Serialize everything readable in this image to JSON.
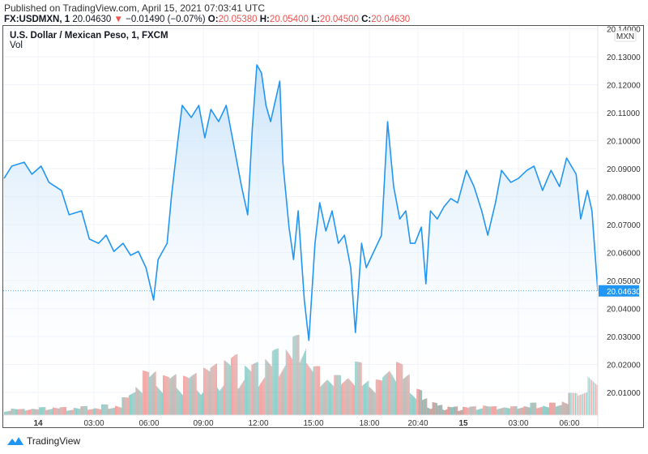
{
  "published": "Published on TradingView.com, April 15, 2021 07:03:41 UTC",
  "header": {
    "symbol": "FX:USDMXN, 1",
    "last": "20.04630",
    "change_arrow": "▼",
    "change": "−0.01490 (−0.07%)",
    "o_label": "O:",
    "o": "20.05380",
    "h_label": "H:",
    "h": "20.05400",
    "l_label": "L:",
    "l": "20.04500",
    "c_label": "C:",
    "c": "20.04630"
  },
  "legend": {
    "title": "U.S. Dollar / Mexican Peso, 1, FXCM",
    "vol": "Vol"
  },
  "footer": {
    "brand": "TradingView"
  },
  "colors": {
    "line": "#2196f3",
    "area": "#d6ebfc",
    "vol_up": "#26a69a",
    "vol_down": "#ef5350",
    "red": "#ef5350"
  },
  "chart_data": {
    "type": "area",
    "currency": "MXN",
    "last_price_label": "20.04630",
    "ylim": [
      20.0,
      20.14
    ],
    "y_ticks": [
      "20.14000",
      "20.13000",
      "20.12000",
      "20.11000",
      "20.10000",
      "20.09000",
      "20.08000",
      "20.07000",
      "20.06000",
      "20.05000",
      "20.04000",
      "20.03000",
      "20.02000",
      "20.01000"
    ],
    "x_ticks": [
      {
        "label": "14",
        "bold": true,
        "t": "04-14 00:00"
      },
      {
        "label": "03:00",
        "t": "04-14 03:00"
      },
      {
        "label": "06:00",
        "t": "04-14 06:00"
      },
      {
        "label": "09:00",
        "t": "04-14 09:00"
      },
      {
        "label": "12:00",
        "t": "04-14 12:00"
      },
      {
        "label": "15:00",
        "t": "04-14 15:00"
      },
      {
        "label": "18:00",
        "t": "04-14 18:00"
      },
      {
        "label": "20:40",
        "t": "04-14 20:40"
      },
      {
        "label": "15",
        "bold": true,
        "t": "04-15 00:00"
      },
      {
        "label": "03:00",
        "t": "04-15 03:00"
      },
      {
        "label": "06:00",
        "t": "04-15 06:00"
      }
    ],
    "series": [
      [
        "04-13 22:10",
        20.0865
      ],
      [
        "04-13 22:35",
        20.0909
      ],
      [
        "04-13 23:15",
        20.0923
      ],
      [
        "04-13 23:40",
        20.088
      ],
      [
        "04-14 00:10",
        20.0909
      ],
      [
        "04-14 00:35",
        20.0851
      ],
      [
        "04-14 01:15",
        20.0822
      ],
      [
        "04-14 01:40",
        20.0735
      ],
      [
        "04-14 02:20",
        20.0749
      ],
      [
        "04-14 02:45",
        20.0648
      ],
      [
        "04-14 03:15",
        20.0633
      ],
      [
        "04-14 03:40",
        20.0662
      ],
      [
        "04-14 04:05",
        20.0604
      ],
      [
        "04-14 04:35",
        20.0633
      ],
      [
        "04-14 05:00",
        20.059
      ],
      [
        "04-14 05:25",
        20.0604
      ],
      [
        "04-14 05:50",
        20.0546
      ],
      [
        "04-14 06:15",
        20.043
      ],
      [
        "04-14 06:30",
        20.0575
      ],
      [
        "04-14 07:00",
        20.0633
      ],
      [
        "04-14 07:15",
        20.0807
      ],
      [
        "04-14 07:35",
        20.0996
      ],
      [
        "04-14 07:50",
        20.1126
      ],
      [
        "04-14 08:20",
        20.1083
      ],
      [
        "04-14 08:45",
        20.1126
      ],
      [
        "04-14 09:05",
        20.101
      ],
      [
        "04-14 09:25",
        20.1112
      ],
      [
        "04-14 09:50",
        20.1068
      ],
      [
        "04-14 10:15",
        20.1126
      ],
      [
        "04-14 10:45",
        20.0952
      ],
      [
        "04-14 11:05",
        20.0836
      ],
      [
        "04-14 11:25",
        20.0735
      ],
      [
        "04-14 11:40",
        20.1039
      ],
      [
        "04-14 11:55",
        20.1271
      ],
      [
        "04-14 12:10",
        20.1242
      ],
      [
        "04-14 12:25",
        20.1126
      ],
      [
        "04-14 12:40",
        20.1068
      ],
      [
        "04-14 13:10",
        20.1213
      ],
      [
        "04-14 13:20",
        20.0923
      ],
      [
        "04-14 13:40",
        20.0691
      ],
      [
        "04-14 13:55",
        20.0575
      ],
      [
        "04-14 14:10",
        20.0749
      ],
      [
        "04-14 14:30",
        20.043
      ],
      [
        "04-14 14:45",
        20.0286
      ],
      [
        "04-14 15:05",
        20.0633
      ],
      [
        "04-14 15:20",
        20.0778
      ],
      [
        "04-14 15:40",
        20.0677
      ],
      [
        "04-14 16:00",
        20.0749
      ],
      [
        "04-14 16:20",
        20.0633
      ],
      [
        "04-14 16:40",
        20.0662
      ],
      [
        "04-14 17:00",
        20.0546
      ],
      [
        "04-14 17:15",
        20.0314
      ],
      [
        "04-14 17:35",
        20.0633
      ],
      [
        "04-14 17:50",
        20.0546
      ],
      [
        "04-14 18:15",
        20.0604
      ],
      [
        "04-14 18:40",
        20.0662
      ],
      [
        "04-14 19:00",
        20.1068
      ],
      [
        "04-14 19:20",
        20.0836
      ],
      [
        "04-14 19:40",
        20.072
      ],
      [
        "04-14 20:00",
        20.0749
      ],
      [
        "04-14 20:15",
        20.0633
      ],
      [
        "04-14 20:30",
        20.0633
      ],
      [
        "04-14 20:55",
        20.0691
      ],
      [
        "04-14 21:15",
        20.0488
      ],
      [
        "04-14 21:35",
        20.0749
      ],
      [
        "04-14 22:05",
        20.072
      ],
      [
        "04-14 22:35",
        20.0764
      ],
      [
        "04-14 23:05",
        20.0793
      ],
      [
        "04-14 23:35",
        20.0778
      ],
      [
        "04-15 00:10",
        20.0894
      ],
      [
        "04-15 00:35",
        20.0836
      ],
      [
        "04-15 01:00",
        20.0749
      ],
      [
        "04-15 01:20",
        20.0662
      ],
      [
        "04-15 01:45",
        20.0778
      ],
      [
        "04-15 02:05",
        20.0894
      ],
      [
        "04-15 02:35",
        20.0851
      ],
      [
        "04-15 03:00",
        20.0865
      ],
      [
        "04-15 03:30",
        20.0894
      ],
      [
        "04-15 03:55",
        20.0909
      ],
      [
        "04-15 04:25",
        20.0822
      ],
      [
        "04-15 04:55",
        20.0894
      ],
      [
        "04-15 05:25",
        20.0836
      ],
      [
        "04-15 05:50",
        20.0938
      ],
      [
        "04-15 06:15",
        20.088
      ],
      [
        "04-15 06:25",
        20.072
      ],
      [
        "04-15 06:40",
        20.0822
      ],
      [
        "04-15 06:50",
        20.0749
      ],
      [
        "04-15 07:03",
        20.0463
      ]
    ],
    "volume_relative": [
      0.08,
      0.08,
      0.07,
      0.1,
      0.08,
      0.09,
      0.1,
      0.1,
      0.09,
      0.08,
      0.1,
      0.1,
      0.09,
      0.1,
      0.12,
      0.1,
      0.14,
      0.2,
      0.3,
      0.45,
      0.5,
      0.55,
      0.5,
      0.45,
      0.5,
      0.5,
      0.45,
      0.5,
      0.5,
      0.55,
      0.6,
      0.6,
      0.65,
      0.7,
      0.65,
      0.6,
      0.6,
      0.65,
      0.7,
      0.75,
      0.8,
      0.85,
      0.9,
      1.0,
      0.7,
      0.55,
      0.5,
      0.5,
      0.45,
      0.5,
      0.55,
      0.6,
      0.45,
      0.45,
      0.4,
      0.55,
      0.75,
      0.6,
      0.5,
      0.4,
      0.3,
      0.2,
      0.15,
      0.15,
      0.12,
      0.12,
      0.1,
      0.1,
      0.1,
      0.1,
      0.1,
      0.12,
      0.12,
      0.1,
      0.12,
      0.1,
      0.1,
      0.12,
      0.12,
      0.14,
      0.12,
      0.13,
      0.14,
      0.14,
      0.2,
      0.25,
      0.3,
      0.6
    ]
  }
}
